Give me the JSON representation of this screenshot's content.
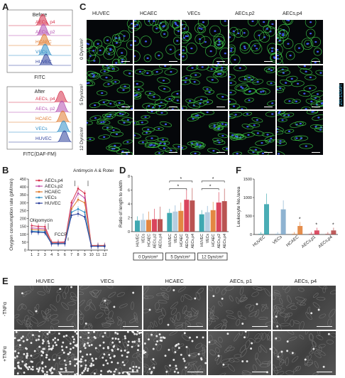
{
  "panels": {
    "a": "A",
    "b": "B",
    "c": "C",
    "d": "D",
    "e": "E",
    "f": "F"
  },
  "panel_a": {
    "before_title": "Before",
    "after_title": "After",
    "xlabel_before": "FITC",
    "xlabel_after": "FITC(DAF-FM)",
    "labels": [
      "AECs, p4",
      "AECs, p2",
      "HCAEC",
      "VECs",
      "HUVEC"
    ],
    "colors": [
      "#d6304a",
      "#b34fb0",
      "#e07a2e",
      "#2f8ec7",
      "#2c3f9b"
    ]
  },
  "panel_c": {
    "columns": [
      "HUVEC",
      "HCAEC",
      "VECs",
      "AECs,p2",
      "AECs,p4"
    ],
    "rows": [
      "0 Dyn/cm²",
      "5 Dyn/cm²",
      "12 Dyn/cm²"
    ],
    "side_label": "ZO-1/DAPI"
  },
  "chart_data": [
    {
      "panel": "B",
      "type": "line",
      "ylabel": "Oxygen consumption rate (pM/min)",
      "annotations": [
        "Oligomycin",
        "FCCP",
        "Antimycin A & Rotenone"
      ],
      "ylim": [
        0,
        450
      ],
      "yticks": [
        0,
        50,
        100,
        150,
        200,
        250,
        300,
        350,
        400,
        450
      ],
      "x": [
        1,
        2,
        3,
        4,
        5,
        6,
        7,
        8,
        9,
        10,
        11,
        12
      ],
      "series": [
        {
          "name": "AECs,p4",
          "color": "#d6304a",
          "values": [
            155,
            150,
            148,
            50,
            50,
            52,
            300,
            390,
            360,
            30,
            30,
            30
          ]
        },
        {
          "name": "AECs,p2",
          "color": "#c04fa8",
          "values": [
            140,
            138,
            135,
            45,
            46,
            47,
            280,
            360,
            330,
            28,
            28,
            28
          ]
        },
        {
          "name": "HCAEC",
          "color": "#e07a2e",
          "values": [
            130,
            128,
            126,
            45,
            44,
            45,
            260,
            320,
            300,
            27,
            27,
            27
          ]
        },
        {
          "name": "VECs",
          "color": "#2f8ec7",
          "values": [
            120,
            118,
            116,
            42,
            42,
            43,
            240,
            260,
            240,
            25,
            25,
            25
          ]
        },
        {
          "name": "HUVEC",
          "color": "#2c3f9b",
          "values": [
            115,
            112,
            110,
            40,
            40,
            41,
            220,
            230,
            210,
            24,
            24,
            24
          ]
        }
      ]
    },
    {
      "panel": "D",
      "type": "bar",
      "ylabel": "Ratio of length to width",
      "ylim": [
        0,
        8
      ],
      "yticks": [
        0,
        2,
        4,
        6,
        8
      ],
      "groups": [
        "0 Dyn/cm²",
        "5 Dyn/cm²",
        "12 Dyn/cm²"
      ],
      "categories": [
        "HUVEC",
        "VECs",
        "HCAEC",
        "AECs,p2",
        "AECs,p4"
      ],
      "colors": [
        "#2a9fa8",
        "#7aa6c9",
        "#e07a2e",
        "#d6304a",
        "#b3403f"
      ],
      "series": [
        {
          "name": "0 Dyn/cm²",
          "values": [
            1.6,
            1.7,
            1.7,
            1.8,
            1.8
          ]
        },
        {
          "name": "5 Dyn/cm²",
          "values": [
            2.7,
            2.9,
            3.0,
            4.6,
            4.5
          ]
        },
        {
          "name": "12 Dyn/cm²",
          "values": [
            2.5,
            2.8,
            3.1,
            4.2,
            4.4
          ]
        }
      ]
    },
    {
      "panel": "F",
      "type": "bar",
      "ylabel": "Leukocyte No./area",
      "ylim": [
        0,
        1500
      ],
      "yticks": [
        0,
        500,
        1000,
        1500
      ],
      "categories": [
        "HUVEC",
        "VECs",
        "HCAEC",
        "AECs,p1",
        "AECs,p4"
      ],
      "legend": [
        "-TNFα",
        "+TNFα"
      ],
      "colors": [
        "#2a9fa8",
        "#7aa6c9",
        "#e07a2e",
        "#d6304a",
        "#b3403f"
      ],
      "series": [
        {
          "name": "-TNFα",
          "values": [
            20,
            20,
            20,
            20,
            20
          ]
        },
        {
          "name": "+TNFα",
          "values": [
            820,
            680,
            230,
            110,
            110
          ]
        }
      ]
    }
  ],
  "panel_e": {
    "columns": [
      "HUVEC",
      "VECs",
      "HCAEC",
      "AECs, p1",
      "AECs, p4"
    ],
    "rows": [
      "-TNFα",
      "+TNFα"
    ]
  }
}
